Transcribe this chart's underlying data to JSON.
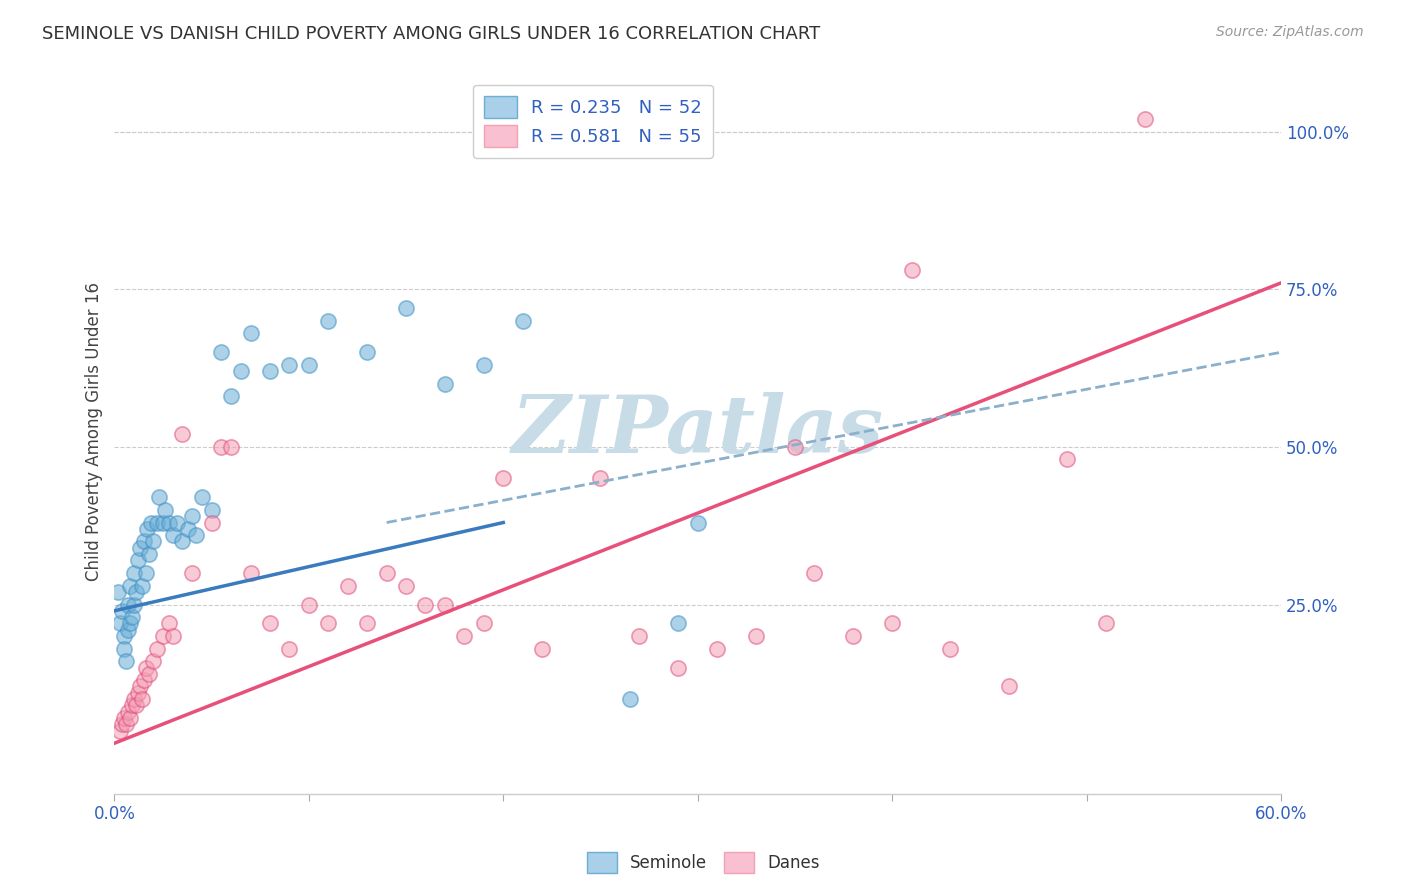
{
  "title": "SEMINOLE VS DANISH CHILD POVERTY AMONG GIRLS UNDER 16 CORRELATION CHART",
  "source": "Source: ZipAtlas.com",
  "ylabel": "Child Poverty Among Girls Under 16",
  "ytick_labels": [
    "100.0%",
    "75.0%",
    "50.0%",
    "25.0%"
  ],
  "ytick_values": [
    1.0,
    0.75,
    0.5,
    0.25
  ],
  "seminole_color": "#6baed6",
  "danes_color": "#f4a0b5",
  "seminole_edge_color": "#4292c6",
  "danes_edge_color": "#e05080",
  "regression_seminole_color": "#3a7abf",
  "regression_danes_color": "#e8507a",
  "regression_dashed_color": "#8ab0cc",
  "watermark_text": "ZIPatlas",
  "watermark_color": "#c8dce8",
  "background_color": "#ffffff",
  "grid_color": "#cccccc",
  "xlim": [
    0.0,
    0.6
  ],
  "ylim": [
    -0.05,
    1.1
  ],
  "blue_line": {
    "x0": 0.0,
    "y0": 0.24,
    "x1": 0.2,
    "y1": 0.38
  },
  "pink_line": {
    "x0": 0.0,
    "y0": 0.03,
    "x1": 0.6,
    "y1": 0.76
  },
  "dash_line": {
    "x0": 0.14,
    "y0": 0.38,
    "x1": 0.6,
    "y1": 0.65
  },
  "seminole_points_x": [
    0.002,
    0.003,
    0.004,
    0.005,
    0.005,
    0.006,
    0.007,
    0.007,
    0.008,
    0.008,
    0.009,
    0.01,
    0.01,
    0.011,
    0.012,
    0.013,
    0.014,
    0.015,
    0.016,
    0.017,
    0.018,
    0.019,
    0.02,
    0.022,
    0.023,
    0.025,
    0.026,
    0.028,
    0.03,
    0.032,
    0.035,
    0.038,
    0.04,
    0.042,
    0.045,
    0.05,
    0.055,
    0.06,
    0.065,
    0.07,
    0.08,
    0.09,
    0.1,
    0.11,
    0.13,
    0.15,
    0.17,
    0.19,
    0.21,
    0.265,
    0.29,
    0.3
  ],
  "seminole_points_y": [
    0.27,
    0.22,
    0.24,
    0.2,
    0.18,
    0.16,
    0.21,
    0.25,
    0.22,
    0.28,
    0.23,
    0.25,
    0.3,
    0.27,
    0.32,
    0.34,
    0.28,
    0.35,
    0.3,
    0.37,
    0.33,
    0.38,
    0.35,
    0.38,
    0.42,
    0.38,
    0.4,
    0.38,
    0.36,
    0.38,
    0.35,
    0.37,
    0.39,
    0.36,
    0.42,
    0.4,
    0.65,
    0.58,
    0.62,
    0.68,
    0.62,
    0.63,
    0.63,
    0.7,
    0.65,
    0.72,
    0.6,
    0.63,
    0.7,
    0.1,
    0.22,
    0.38
  ],
  "danes_points_x": [
    0.003,
    0.004,
    0.005,
    0.006,
    0.007,
    0.008,
    0.009,
    0.01,
    0.011,
    0.012,
    0.013,
    0.014,
    0.015,
    0.016,
    0.018,
    0.02,
    0.022,
    0.025,
    0.028,
    0.03,
    0.035,
    0.04,
    0.05,
    0.055,
    0.06,
    0.07,
    0.08,
    0.09,
    0.1,
    0.11,
    0.12,
    0.13,
    0.14,
    0.15,
    0.16,
    0.17,
    0.18,
    0.19,
    0.2,
    0.22,
    0.25,
    0.27,
    0.29,
    0.31,
    0.33,
    0.35,
    0.36,
    0.38,
    0.4,
    0.41,
    0.43,
    0.46,
    0.49,
    0.51,
    0.53
  ],
  "danes_points_y": [
    0.05,
    0.06,
    0.07,
    0.06,
    0.08,
    0.07,
    0.09,
    0.1,
    0.09,
    0.11,
    0.12,
    0.1,
    0.13,
    0.15,
    0.14,
    0.16,
    0.18,
    0.2,
    0.22,
    0.2,
    0.52,
    0.3,
    0.38,
    0.5,
    0.5,
    0.3,
    0.22,
    0.18,
    0.25,
    0.22,
    0.28,
    0.22,
    0.3,
    0.28,
    0.25,
    0.25,
    0.2,
    0.22,
    0.45,
    0.18,
    0.45,
    0.2,
    0.15,
    0.18,
    0.2,
    0.5,
    0.3,
    0.2,
    0.22,
    0.78,
    0.18,
    0.12,
    0.48,
    0.22,
    1.02
  ]
}
